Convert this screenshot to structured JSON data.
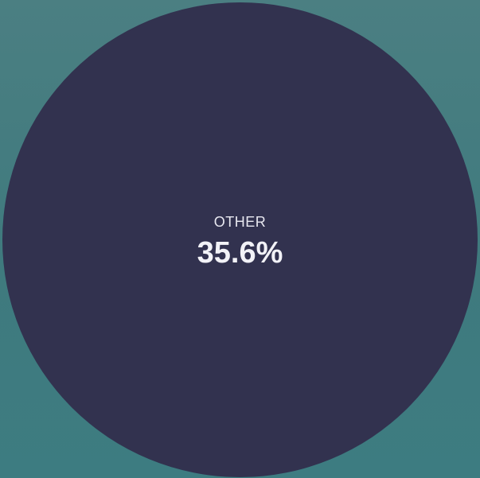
{
  "focus_segment": {
    "label": "OTHER",
    "value_text": "35.6%",
    "value": 35.6
  },
  "colors": {
    "background": "#4b7f82",
    "segment_fill": "#32324f",
    "text": "#e8e8f0"
  }
}
